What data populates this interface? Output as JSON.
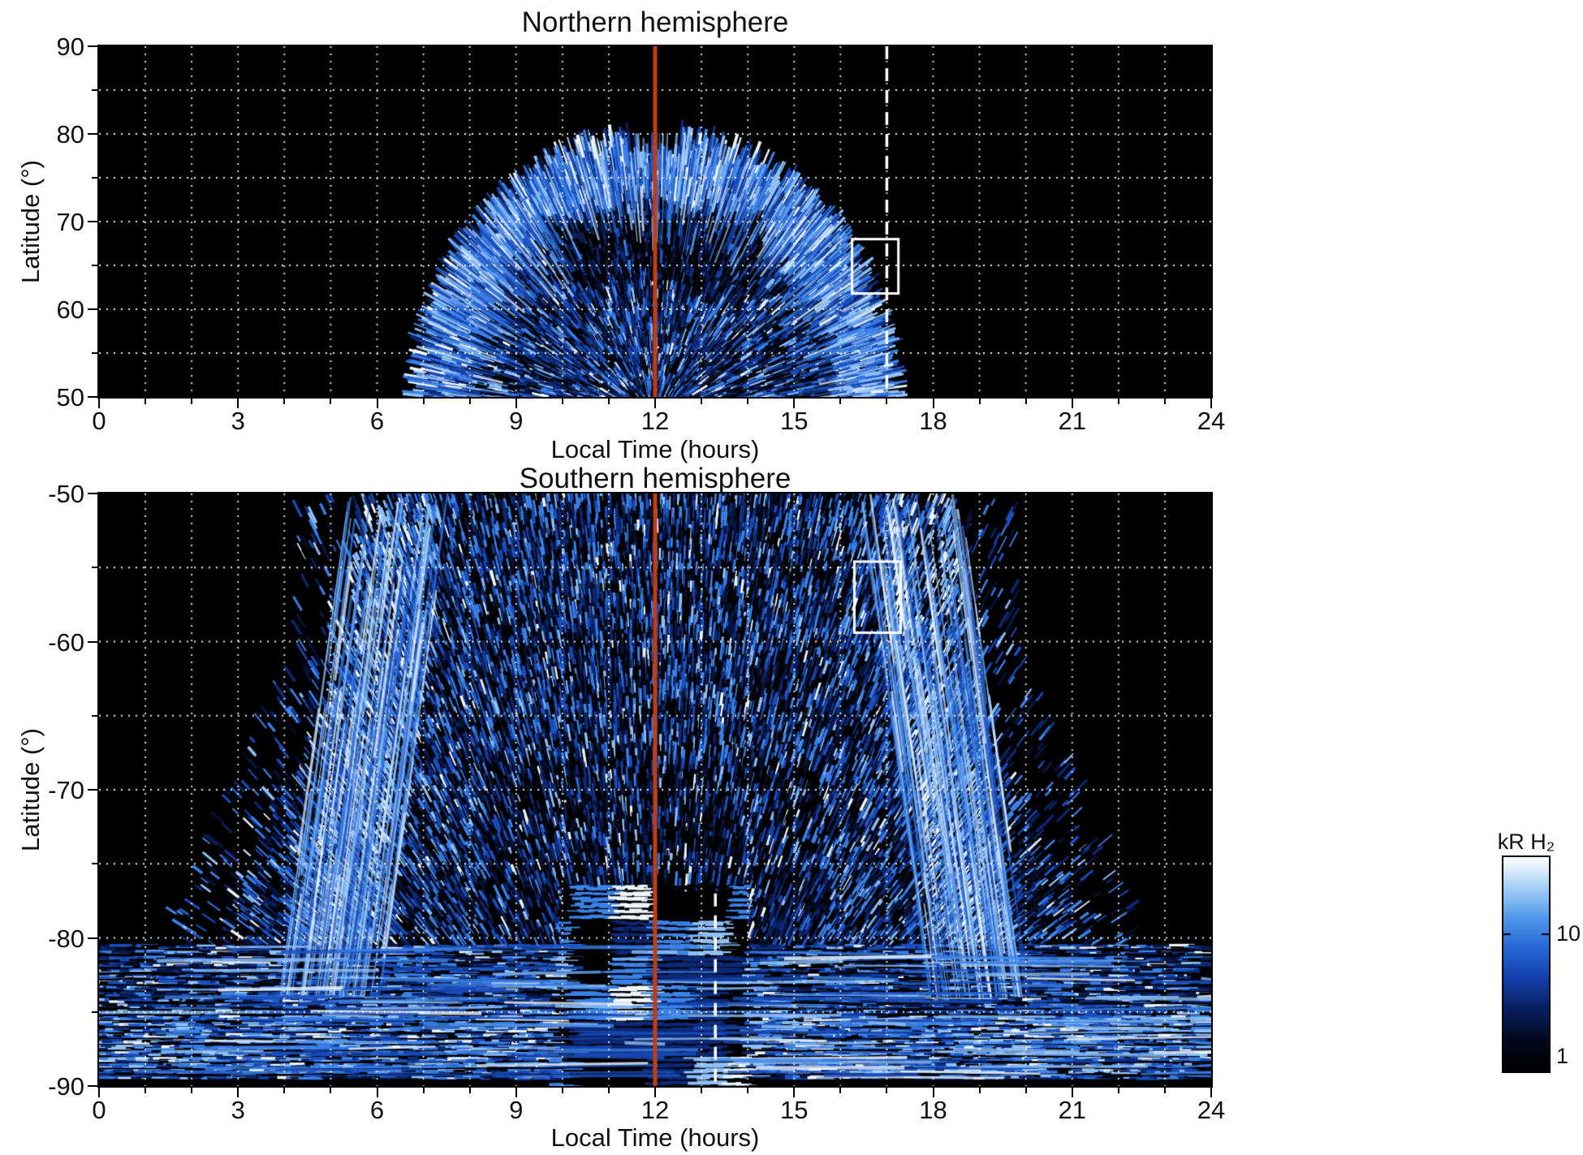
{
  "chart_data": [
    {
      "type": "heatmap",
      "hemisphere": "north",
      "title": "Northern hemisphere",
      "xlabel": "Local Time (hours)",
      "ylabel": "Latitude (°)",
      "xlim": [
        0,
        24
      ],
      "ylim": [
        50,
        90
      ],
      "xticks": [
        0,
        3,
        6,
        9,
        12,
        15,
        18,
        21,
        24
      ],
      "yticks": [
        90,
        80,
        70,
        60,
        50
      ],
      "background": "#000000",
      "grid": {
        "style": "dotted",
        "color": "#ffffff",
        "x_step": 1,
        "y_step": 5
      },
      "emission": {
        "description": "Patchy blue H2 auroral emission forming a dome centred on local noon, spanning roughly 07:00-17:00 LT from 50 deg up to about 79 deg latitude, with bright radial streaks along the outer edge and a darker bay near 64-70 deg around noon",
        "lt_extent": [
          7.0,
          17.2
        ],
        "lat_extent": [
          50,
          79
        ],
        "center_lt": 12
      },
      "annotations": {
        "noon_line": {
          "lt": 12,
          "color": "#c43d10",
          "style": "solid"
        },
        "dashed_line": {
          "lt": 17.0,
          "lat_range": [
            50,
            90
          ],
          "color": "#ffffff",
          "style": "dashed"
        },
        "highlight_box": {
          "lt_range": [
            16.25,
            17.25
          ],
          "lat_range": [
            61.8,
            68.0
          ],
          "color": "#ffffff"
        }
      }
    },
    {
      "type": "heatmap",
      "hemisphere": "south",
      "title": "Southern hemisphere",
      "xlabel": "Local Time (hours)",
      "ylabel": "Latitude (°)",
      "xlim": [
        0,
        24
      ],
      "ylim": [
        -90,
        -50
      ],
      "xticks": [
        0,
        3,
        6,
        9,
        12,
        15,
        18,
        21,
        24
      ],
      "yticks": [
        -50,
        -60,
        -70,
        -80,
        -90
      ],
      "background": "#000000",
      "grid": {
        "style": "dotted",
        "color": "#ffffff",
        "x_step": 1,
        "y_step": 5
      },
      "emission": {
        "description": "Dense patchy blue H2 auroral emission filling roughly 04:30-19:30 LT, brightest along curved dawn (~06:30 LT) and dusk (~17:30 LT) flanks, flaring poleward into horizontal striated bands covering all local times below -80 deg, with a dark checkered wedge below about -76 deg near noon",
        "lt_extent": [
          0,
          24
        ],
        "lat_extent": [
          -90,
          -50
        ],
        "flank_lts": [
          6.4,
          17.6
        ],
        "center_lt": 12
      },
      "annotations": {
        "noon_line": {
          "lt": 12,
          "color": "#c43d10",
          "style": "solid"
        },
        "dashed_line": {
          "lt": 13.3,
          "lat_range": [
            -90,
            -77
          ],
          "color": "#ffffff",
          "style": "dashed"
        },
        "highlight_box": {
          "lt_range": [
            16.3,
            17.3
          ],
          "lat_range": [
            -59.4,
            -54.6
          ],
          "color": "#ffffff"
        }
      }
    }
  ],
  "colorbar": {
    "label": "kR H₂",
    "scale": "log",
    "ticks": [
      {
        "value": "10",
        "frac_from_top": 0.36
      },
      {
        "value": "1",
        "frac_from_top": 0.93
      }
    ],
    "gradient_bottom_to_top": [
      "#000000",
      "#03071c",
      "#081f5e",
      "#123da8",
      "#2566d4",
      "#4f97ea",
      "#a5cff6",
      "#ffffff"
    ]
  }
}
